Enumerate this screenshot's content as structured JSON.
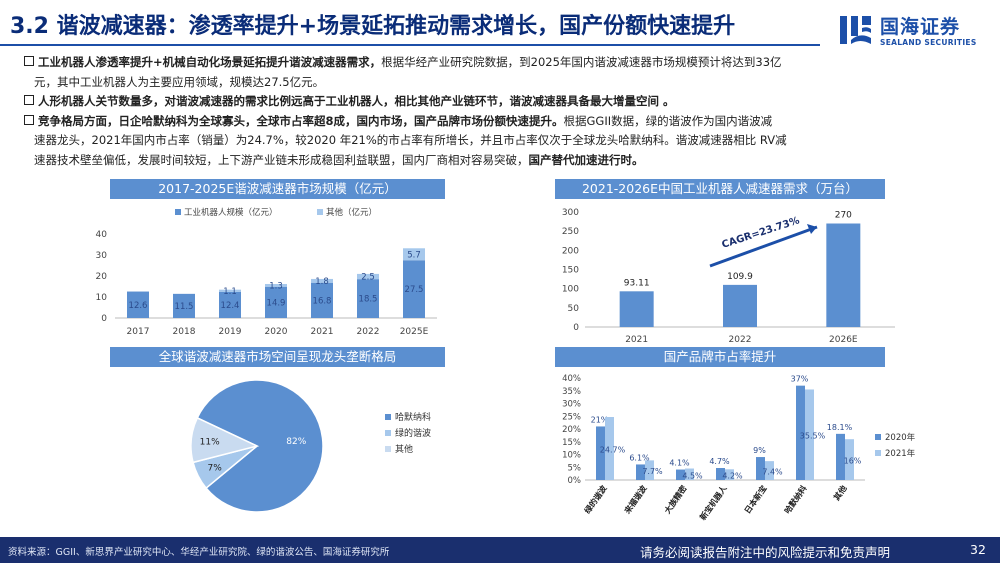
{
  "header": {
    "title": "3.2 谐波减速器：渗透率提升+场景延拓推动需求增长，国产份额快速提升",
    "logo_cn": "国海证券",
    "logo_en": "SEALAND SECURITIES"
  },
  "bullets": {
    "b1_bold": "工业机器人渗透率提升+机械自动化场景延拓提升谐波减速器需求，",
    "b1_text": "根据华经产业研究院数据，到2025年国内谐波减速器市场规模预计将达到33亿",
    "b1_line2": "元，其中工业机器人为主要应用领域，规模达27.5亿元。",
    "b2_bold": "人形机器人关节数量多，对谐波减速器的需求比例远高于工业机器人，相比其他产业链环节，谐波减速器具备最大增量空间 。",
    "b3_bold": "竞争格局方面，日企哈默纳科为全球寡头，全球市占率超8成，国内市场，国产品牌市场份额快速提升。",
    "b3_text": "根据GGII数据，绿的谐波作为国内谐波减",
    "b3_line2": "速器龙头，2021年国内市占率（销量）为24.7%，较2020 年21%的市占率有所增长，并且市占率仅次于全球龙头哈默纳科。谐波减速器相比 RV减",
    "b3_line3_text": "速器技术壁垒偏低，发展时间较短，上下游产业链未形成稳固利益联盟，国内厂商相对容易突破，",
    "b3_line3_bold": "国产替代加速进行时。"
  },
  "chart_data": [
    {
      "type": "bar",
      "stacked": true,
      "title": "2017-2025E谐波减速器市场规模（亿元）",
      "categories": [
        "2017",
        "2018",
        "2019",
        "2020",
        "2021",
        "2022",
        "2025E"
      ],
      "series": [
        {
          "name": "工业机器人规模（亿元）",
          "values": [
            12.6,
            11.5,
            12.4,
            14.9,
            16.8,
            18.5,
            27.5
          ],
          "color": "#5b8fd0"
        },
        {
          "name": "其他（亿元）",
          "values": [
            0,
            0,
            1.1,
            1.3,
            1.8,
            2.5,
            5.7
          ],
          "color": "#a6c8ec"
        }
      ],
      "data_labels": [
        [
          "12.6",
          "11.5",
          "12.4",
          "14.9",
          "16.8",
          "18.5",
          "27.5"
        ],
        [
          "",
          "",
          "1.1",
          "1.3",
          "1.8",
          "2.5",
          "5.7"
        ]
      ],
      "yticks": [
        0,
        10,
        20,
        30,
        40
      ],
      "ylim": [
        0,
        40
      ],
      "legend": "top"
    },
    {
      "type": "bar",
      "title": "2021-2026E中国工业机器人减速器需求（万台）",
      "categories": [
        "2021",
        "2022",
        "2026E"
      ],
      "values": [
        93.11,
        109.9,
        270
      ],
      "value_labels": [
        "93.11",
        "109.9",
        "270"
      ],
      "yticks": [
        0,
        50,
        100,
        150,
        200,
        250,
        300
      ],
      "ylim": [
        0,
        300
      ],
      "annotation": "CAGR=23.73%"
    },
    {
      "type": "pie",
      "title": "全球谐波减速器市场空间呈现龙头垄断格局",
      "labels": [
        "哈默纳科",
        "绿的谐波",
        "其他"
      ],
      "values": [
        82,
        7,
        11
      ],
      "value_labels": [
        "82%",
        "7%",
        "11%"
      ],
      "colors": [
        "#5b8fd0",
        "#a6c8ec",
        "#c9dbf0"
      ],
      "legend": "right"
    },
    {
      "type": "bar",
      "title": "国产品牌市占率提升",
      "categories": [
        "绿的谐波",
        "来福谐波",
        "大族精密",
        "新宝机器人",
        "日本新宝",
        "哈默纳科",
        "其他"
      ],
      "series": [
        {
          "name": "2020年",
          "values": [
            21,
            6.1,
            4.1,
            4.7,
            9,
            37,
            18.1
          ],
          "color": "#5b8fd0"
        },
        {
          "name": "2021年",
          "values": [
            24.7,
            7.7,
            4.5,
            4.2,
            7.4,
            35.5,
            16
          ],
          "color": "#a6c8ec"
        }
      ],
      "data_labels": [
        [
          "21%",
          "6.1%",
          "4.1%",
          "4.7%",
          "9%",
          "37%",
          "18.1%"
        ],
        [
          "24.7%",
          "7.7%",
          "4.5%",
          "4.2%",
          "7.4%",
          "35.5%",
          "16%"
        ]
      ],
      "yticks": [
        "0%",
        "5%",
        "10%",
        "15%",
        "20%",
        "25%",
        "30%",
        "35%",
        "40%"
      ],
      "ylim": [
        0,
        40
      ],
      "legend": "right"
    }
  ],
  "footer": {
    "source": "资料来源：GGII、新思界产业研究中心、华经产业研究院、绿的谐波公告、国海证券研究所",
    "disclaimer": "请务必阅读报告附注中的风险提示和免责声明",
    "page": "32"
  }
}
